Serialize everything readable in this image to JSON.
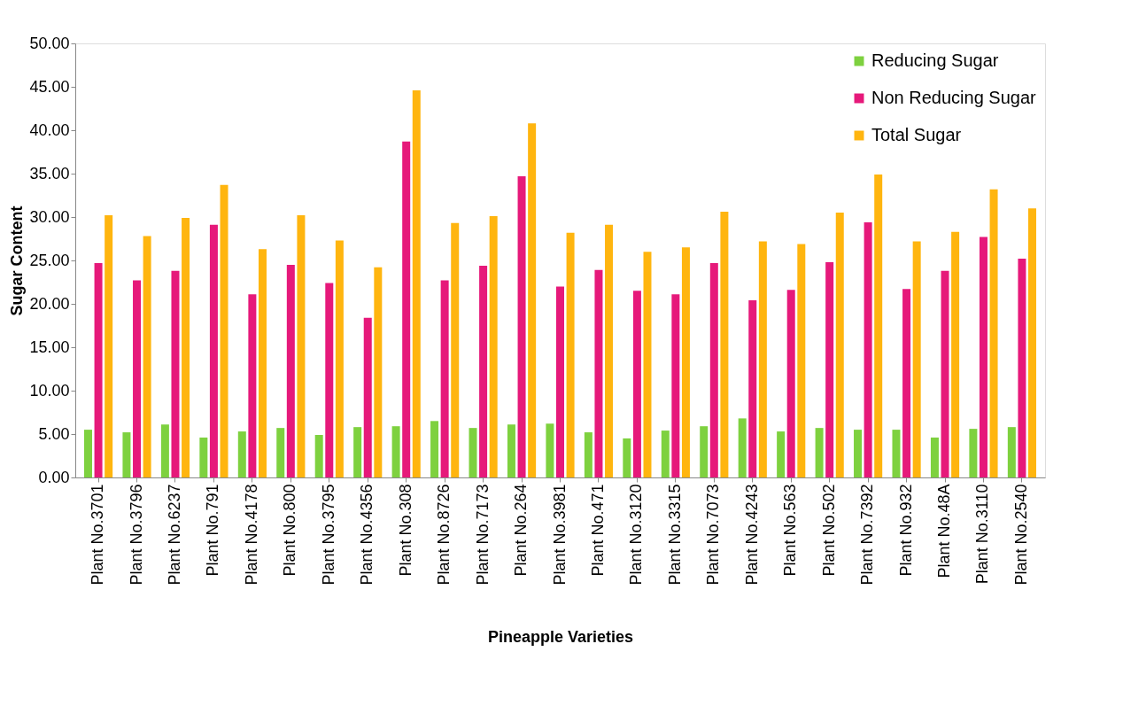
{
  "chart_data": {
    "type": "bar",
    "xlabel": "Pineapple Varieties",
    "ylabel": "Sugar Content",
    "categories": [
      "Plant No.3701",
      "Plant No.3796",
      "Plant No.6237",
      "Plant No.791",
      "Plant No.4178",
      "Plant No.800",
      "Plant No.3795",
      "Plant No.4356",
      "Plant No.308",
      "Plant No.8726",
      "Plant No.7173",
      "Plant No.264",
      "Plant No.3981",
      "Plant No.471",
      "Plant No.3120",
      "Plant No.3315",
      "Plant No.7073",
      "Plant No.4243",
      "Plant No.563",
      "Plant No.502",
      "Plant No.7392",
      "Plant No.932",
      "Plant No.48A",
      "Plant No.3110",
      "Plant No.2540"
    ],
    "series": [
      {
        "name": "Reducing Sugar",
        "color": "#7ed13f",
        "values": [
          5.5,
          5.2,
          6.1,
          4.6,
          5.3,
          5.7,
          4.9,
          5.8,
          5.9,
          6.5,
          5.7,
          6.1,
          6.2,
          5.2,
          4.5,
          5.4,
          5.9,
          6.8,
          5.3,
          5.7,
          5.5,
          5.5,
          4.6,
          5.6,
          5.8
        ]
      },
      {
        "name": "Non Reducing Sugar",
        "color": "#e6197a",
        "values": [
          24.7,
          22.7,
          23.8,
          29.1,
          21.1,
          24.5,
          22.4,
          18.4,
          38.7,
          22.7,
          24.4,
          34.7,
          22.0,
          23.9,
          21.5,
          21.1,
          24.7,
          20.4,
          21.6,
          24.8,
          29.4,
          21.7,
          23.8,
          27.7,
          25.2
        ]
      },
      {
        "name": "Total Sugar",
        "color": "#ffb50f",
        "values": [
          30.2,
          27.8,
          29.9,
          33.7,
          26.3,
          30.2,
          27.3,
          24.2,
          44.6,
          29.3,
          30.1,
          40.8,
          28.2,
          29.1,
          26.0,
          26.5,
          30.6,
          27.2,
          26.9,
          30.5,
          34.9,
          27.2,
          28.3,
          33.2,
          31.0
        ]
      }
    ],
    "ylim": [
      0,
      50
    ],
    "yticks": [
      {
        "value": 0,
        "label": "0.00"
      },
      {
        "value": 5,
        "label": "5.00"
      },
      {
        "value": 10,
        "label": "10.00"
      },
      {
        "value": 15,
        "label": "15.00"
      },
      {
        "value": 20,
        "label": "20.00"
      },
      {
        "value": 25,
        "label": "25.00"
      },
      {
        "value": 30,
        "label": "30.00"
      },
      {
        "value": 35,
        "label": "35.00"
      },
      {
        "value": 40,
        "label": "40.00"
      },
      {
        "value": 45,
        "label": "45.00"
      },
      {
        "value": 50,
        "label": "50.00"
      }
    ],
    "grid": false,
    "legend": "top right"
  }
}
